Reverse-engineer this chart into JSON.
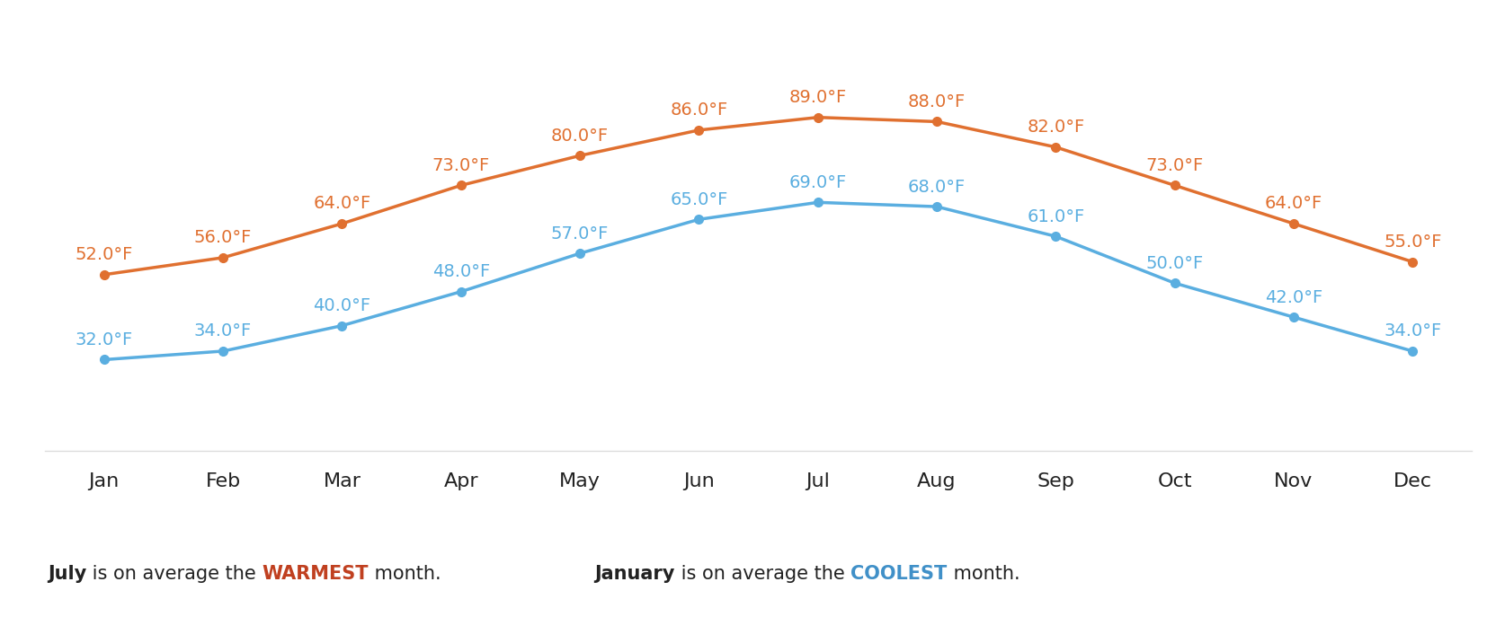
{
  "months": [
    "Jan",
    "Feb",
    "Mar",
    "Apr",
    "May",
    "Jun",
    "Jul",
    "Aug",
    "Sep",
    "Oct",
    "Nov",
    "Dec"
  ],
  "high_temps": [
    52.0,
    56.0,
    64.0,
    73.0,
    80.0,
    86.0,
    89.0,
    88.0,
    82.0,
    73.0,
    64.0,
    55.0
  ],
  "low_temps": [
    32.0,
    34.0,
    40.0,
    48.0,
    57.0,
    65.0,
    69.0,
    68.0,
    61.0,
    50.0,
    42.0,
    34.0
  ],
  "high_color": "#E07030",
  "low_color": "#5AAEE0",
  "bg_color": "#FFFFFF",
  "label_fontsize": 14,
  "axis_fontsize": 16,
  "footer_fontsize": 15,
  "marker_size": 7,
  "line_width": 2.5,
  "warmest_color": "#C04020",
  "coolest_color": "#4090C8",
  "separator_color": "#DDDDDD",
  "text_color": "#222222"
}
